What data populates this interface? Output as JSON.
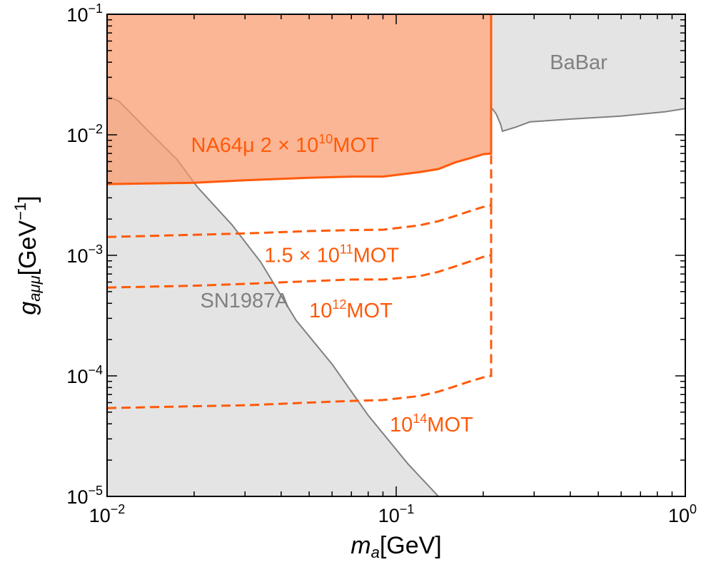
{
  "chart_data": {
    "type": "area",
    "title": "",
    "xscale": "log",
    "yscale": "log",
    "xlim": [
      0.01,
      1.0
    ],
    "ylim": [
      1e-05,
      0.1
    ],
    "xlabel": {
      "base": "m",
      "sub": "a",
      "unit": "[GeV]"
    },
    "ylabel": {
      "base": "g",
      "sub": "aμμ",
      "unit": "[GeV",
      "unit_sup": "−1",
      "unit_end": "]"
    },
    "x_ticks": [
      {
        "value": 0.01,
        "base": "10",
        "exp": "−2"
      },
      {
        "value": 0.1,
        "base": "10",
        "exp": "−1"
      },
      {
        "value": 1.0,
        "base": "10",
        "exp": "0"
      }
    ],
    "y_ticks": [
      {
        "value": 1e-05,
        "base": "10",
        "exp": "−5"
      },
      {
        "value": 0.0001,
        "base": "10",
        "exp": "−4"
      },
      {
        "value": 0.001,
        "base": "10",
        "exp": "−3"
      },
      {
        "value": 0.01,
        "base": "10",
        "exp": "−2"
      },
      {
        "value": 0.1,
        "base": "10",
        "exp": "−1"
      }
    ],
    "colors": {
      "orange": "#ff5a0a",
      "orange_fill": "#f99a6c",
      "gray_line": "#808080",
      "gray_fill": "#e4e4e4",
      "gray_text": "#808080",
      "frame": "#000000"
    },
    "regions": [
      {
        "name": "SN1987A",
        "label": "SN1987A",
        "label_at": [
          0.021,
          0.00037
        ],
        "points": [
          [
            0.01,
            0.021
          ],
          [
            0.011,
            0.019
          ],
          [
            0.0135,
            0.0115
          ],
          [
            0.0175,
            0.0062
          ],
          [
            0.0205,
            0.0037
          ],
          [
            0.027,
            0.0018
          ],
          [
            0.034,
            0.00088
          ],
          [
            0.045,
            0.00029
          ],
          [
            0.06,
            0.000125
          ],
          [
            0.08,
            4.7e-05
          ],
          [
            0.11,
            1.85e-05
          ],
          [
            0.14,
            1e-05
          ]
        ]
      },
      {
        "name": "BaBar",
        "label": "BaBar",
        "label_at": [
          0.34,
          0.035
        ],
        "points": [
          [
            0.215,
            0.1
          ],
          [
            0.215,
            0.0165
          ],
          [
            0.222,
            0.0148
          ],
          [
            0.23,
            0.0121
          ],
          [
            0.233,
            0.0107
          ],
          [
            0.26,
            0.0116
          ],
          [
            0.29,
            0.0128
          ],
          [
            0.4,
            0.0135
          ],
          [
            0.6,
            0.0143
          ],
          [
            0.85,
            0.0155
          ],
          [
            1.0,
            0.0165
          ]
        ]
      }
    ],
    "series": [
      {
        "name": "NA64mu_2e10",
        "label": "NA64μ 2 × 10",
        "label_sup": "10",
        "label_end": "MOT",
        "label_at": [
          0.0195,
          0.0072
        ],
        "style": "solid_filled",
        "points": [
          [
            0.01,
            0.0039
          ],
          [
            0.02,
            0.004
          ],
          [
            0.03,
            0.0042
          ],
          [
            0.05,
            0.0044
          ],
          [
            0.07,
            0.0045
          ],
          [
            0.09,
            0.0045
          ],
          [
            0.12,
            0.0049
          ],
          [
            0.14,
            0.0052
          ],
          [
            0.16,
            0.0059
          ],
          [
            0.18,
            0.0064
          ],
          [
            0.2,
            0.0069
          ],
          [
            0.213,
            0.007
          ],
          [
            0.213,
            0.1
          ]
        ]
      },
      {
        "name": "NA64mu_1.5e11",
        "label": "1.5 × 10",
        "label_sup": "11",
        "label_end": "MOT",
        "label_at": [
          0.035,
          0.00088
        ],
        "style": "dashed",
        "points": [
          [
            0.01,
            0.00142
          ],
          [
            0.02,
            0.00148
          ],
          [
            0.03,
            0.00152
          ],
          [
            0.05,
            0.00159
          ],
          [
            0.07,
            0.00162
          ],
          [
            0.09,
            0.00163
          ],
          [
            0.12,
            0.00177
          ],
          [
            0.14,
            0.00192
          ],
          [
            0.16,
            0.00212
          ],
          [
            0.18,
            0.00233
          ],
          [
            0.2,
            0.00252
          ],
          [
            0.213,
            0.0026
          ],
          [
            0.213,
            0.0068
          ]
        ]
      },
      {
        "name": "NA64mu_1e12",
        "label": "10",
        "label_sup": "12",
        "label_end": "MOT",
        "label_at": [
          0.05,
          0.000305
        ],
        "style": "dashed",
        "points": [
          [
            0.01,
            0.00054
          ],
          [
            0.02,
            0.00056
          ],
          [
            0.03,
            0.00058
          ],
          [
            0.05,
            0.00061
          ],
          [
            0.07,
            0.00063
          ],
          [
            0.09,
            0.00063
          ],
          [
            0.12,
            0.00067
          ],
          [
            0.14,
            0.00073
          ],
          [
            0.16,
            0.00081
          ],
          [
            0.18,
            0.00089
          ],
          [
            0.2,
            0.00097
          ],
          [
            0.213,
            0.001
          ],
          [
            0.213,
            0.0026
          ]
        ]
      },
      {
        "name": "NA64mu_1e14",
        "label": "10",
        "label_sup": "14",
        "label_end": "MOT",
        "label_at": [
          0.095,
          3.45e-05
        ],
        "style": "dashed",
        "points": [
          [
            0.01,
            5.4e-05
          ],
          [
            0.02,
            5.6e-05
          ],
          [
            0.03,
            5.7e-05
          ],
          [
            0.05,
            6e-05
          ],
          [
            0.07,
            6.2e-05
          ],
          [
            0.09,
            6.3e-05
          ],
          [
            0.12,
            6.8e-05
          ],
          [
            0.14,
            7.4e-05
          ],
          [
            0.16,
            8.2e-05
          ],
          [
            0.18,
            9e-05
          ],
          [
            0.2,
            9.7e-05
          ],
          [
            0.213,
            0.0001
          ],
          [
            0.213,
            0.001
          ]
        ]
      }
    ]
  }
}
